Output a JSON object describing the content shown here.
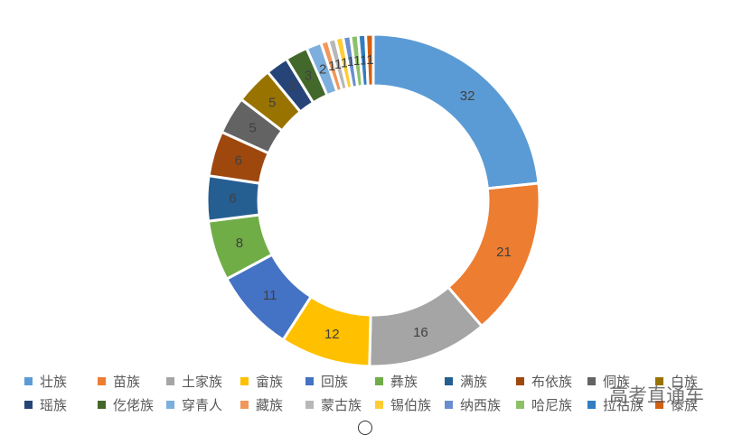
{
  "chart_data": {
    "type": "pie",
    "variant": "doughnut",
    "title": "",
    "categories": [
      "壮族",
      "苗族",
      "土家族",
      "畲族",
      "回族",
      "彝族",
      "满族",
      "布依族",
      "侗族",
      "白族",
      "瑶族",
      "仡佬族",
      "穿青人",
      "藏族",
      "蒙古族",
      "锡伯族",
      "纳西族",
      "哈尼族",
      "拉祜族",
      "傣族"
    ],
    "values": [
      32,
      21,
      16,
      12,
      11,
      8,
      6,
      6,
      5,
      5,
      3,
      3,
      2,
      1,
      1,
      1,
      1,
      1,
      1,
      1
    ],
    "data_labels": [
      "32",
      "21",
      "16",
      "12",
      "11",
      "8",
      "6",
      "6",
      "5",
      "5",
      "3",
      "3",
      "2",
      "1",
      "1",
      "1",
      "1",
      "1",
      "1",
      "1"
    ],
    "colors": [
      "#5B9BD5",
      "#ED7D31",
      "#A5A5A5",
      "#FFC000",
      "#4472C4",
      "#70AD47",
      "#255E91",
      "#9E480E",
      "#636363",
      "#997300",
      "#264478",
      "#43682B",
      "#7CAFDD",
      "#F1975A",
      "#B7B7B7",
      "#FFCD33",
      "#698ED0",
      "#8CC168",
      "#327DC2",
      "#D26012"
    ],
    "legend_position": "bottom",
    "start_angle_deg": 0,
    "direction": "clockwise"
  },
  "watermark": "高考直通车"
}
